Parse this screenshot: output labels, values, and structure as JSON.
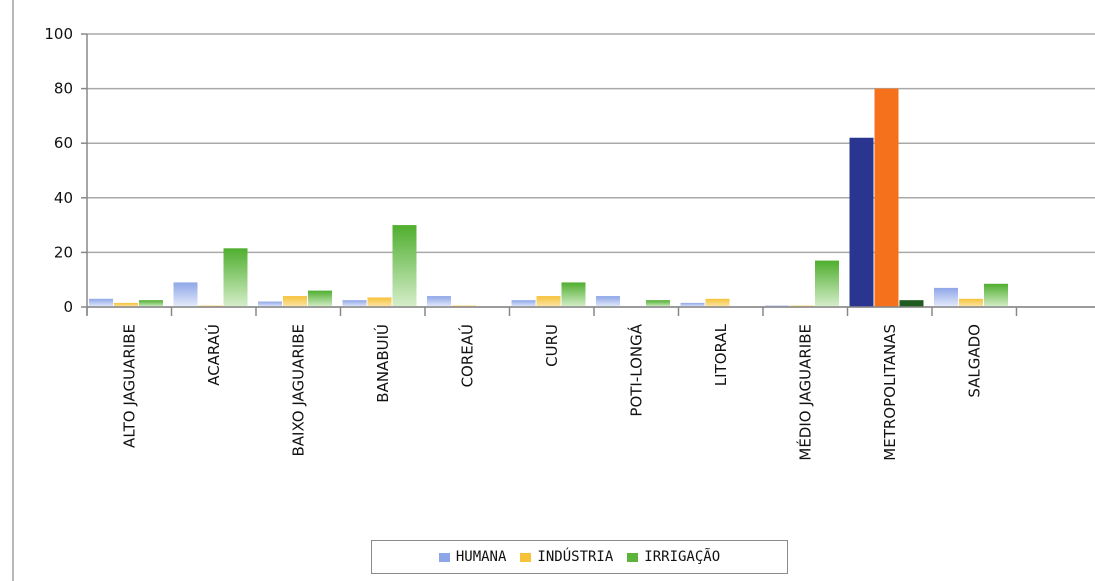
{
  "chart_data": {
    "type": "bar",
    "title": "",
    "xlabel": "",
    "ylabel": "",
    "ylim": [
      0,
      100
    ],
    "yticks": [
      0,
      20,
      40,
      60,
      80,
      100
    ],
    "grid": true,
    "legend_position": "bottom",
    "categories": [
      "ALTO JAGUARIBE",
      "ACARAÚ",
      "BAIXO JAGUARIBE",
      "BANABUIÚ",
      "COREAÚ",
      "CURU",
      "POTI-LONGÁ",
      "LITORAL",
      "MÉDIO JAGUARIBE",
      "METROPOLITANAS",
      "SALGADO"
    ],
    "series": [
      {
        "name": "HUMANA",
        "color": "#8ea6e8",
        "values": [
          3,
          9,
          2,
          2.5,
          4,
          2.5,
          4,
          1.5,
          0.5,
          62,
          7
        ]
      },
      {
        "name": "INDÚSTRIA",
        "color": "#f6c23a",
        "values": [
          1.5,
          0.5,
          4,
          3.5,
          0.5,
          4,
          0,
          3,
          0.5,
          80,
          3
        ]
      },
      {
        "name": "IRRIGAÇÃO",
        "color": "#5cb53a",
        "values": [
          2.5,
          21.5,
          6,
          30,
          0,
          9,
          2.5,
          0,
          17,
          2.5,
          8.5
        ]
      }
    ],
    "highlight_colors": {
      "HUMANA": "#2a3590",
      "INDÚSTRIA": "#f5711c",
      "IRRIGAÇÃO": "#1f5a1f"
    }
  }
}
